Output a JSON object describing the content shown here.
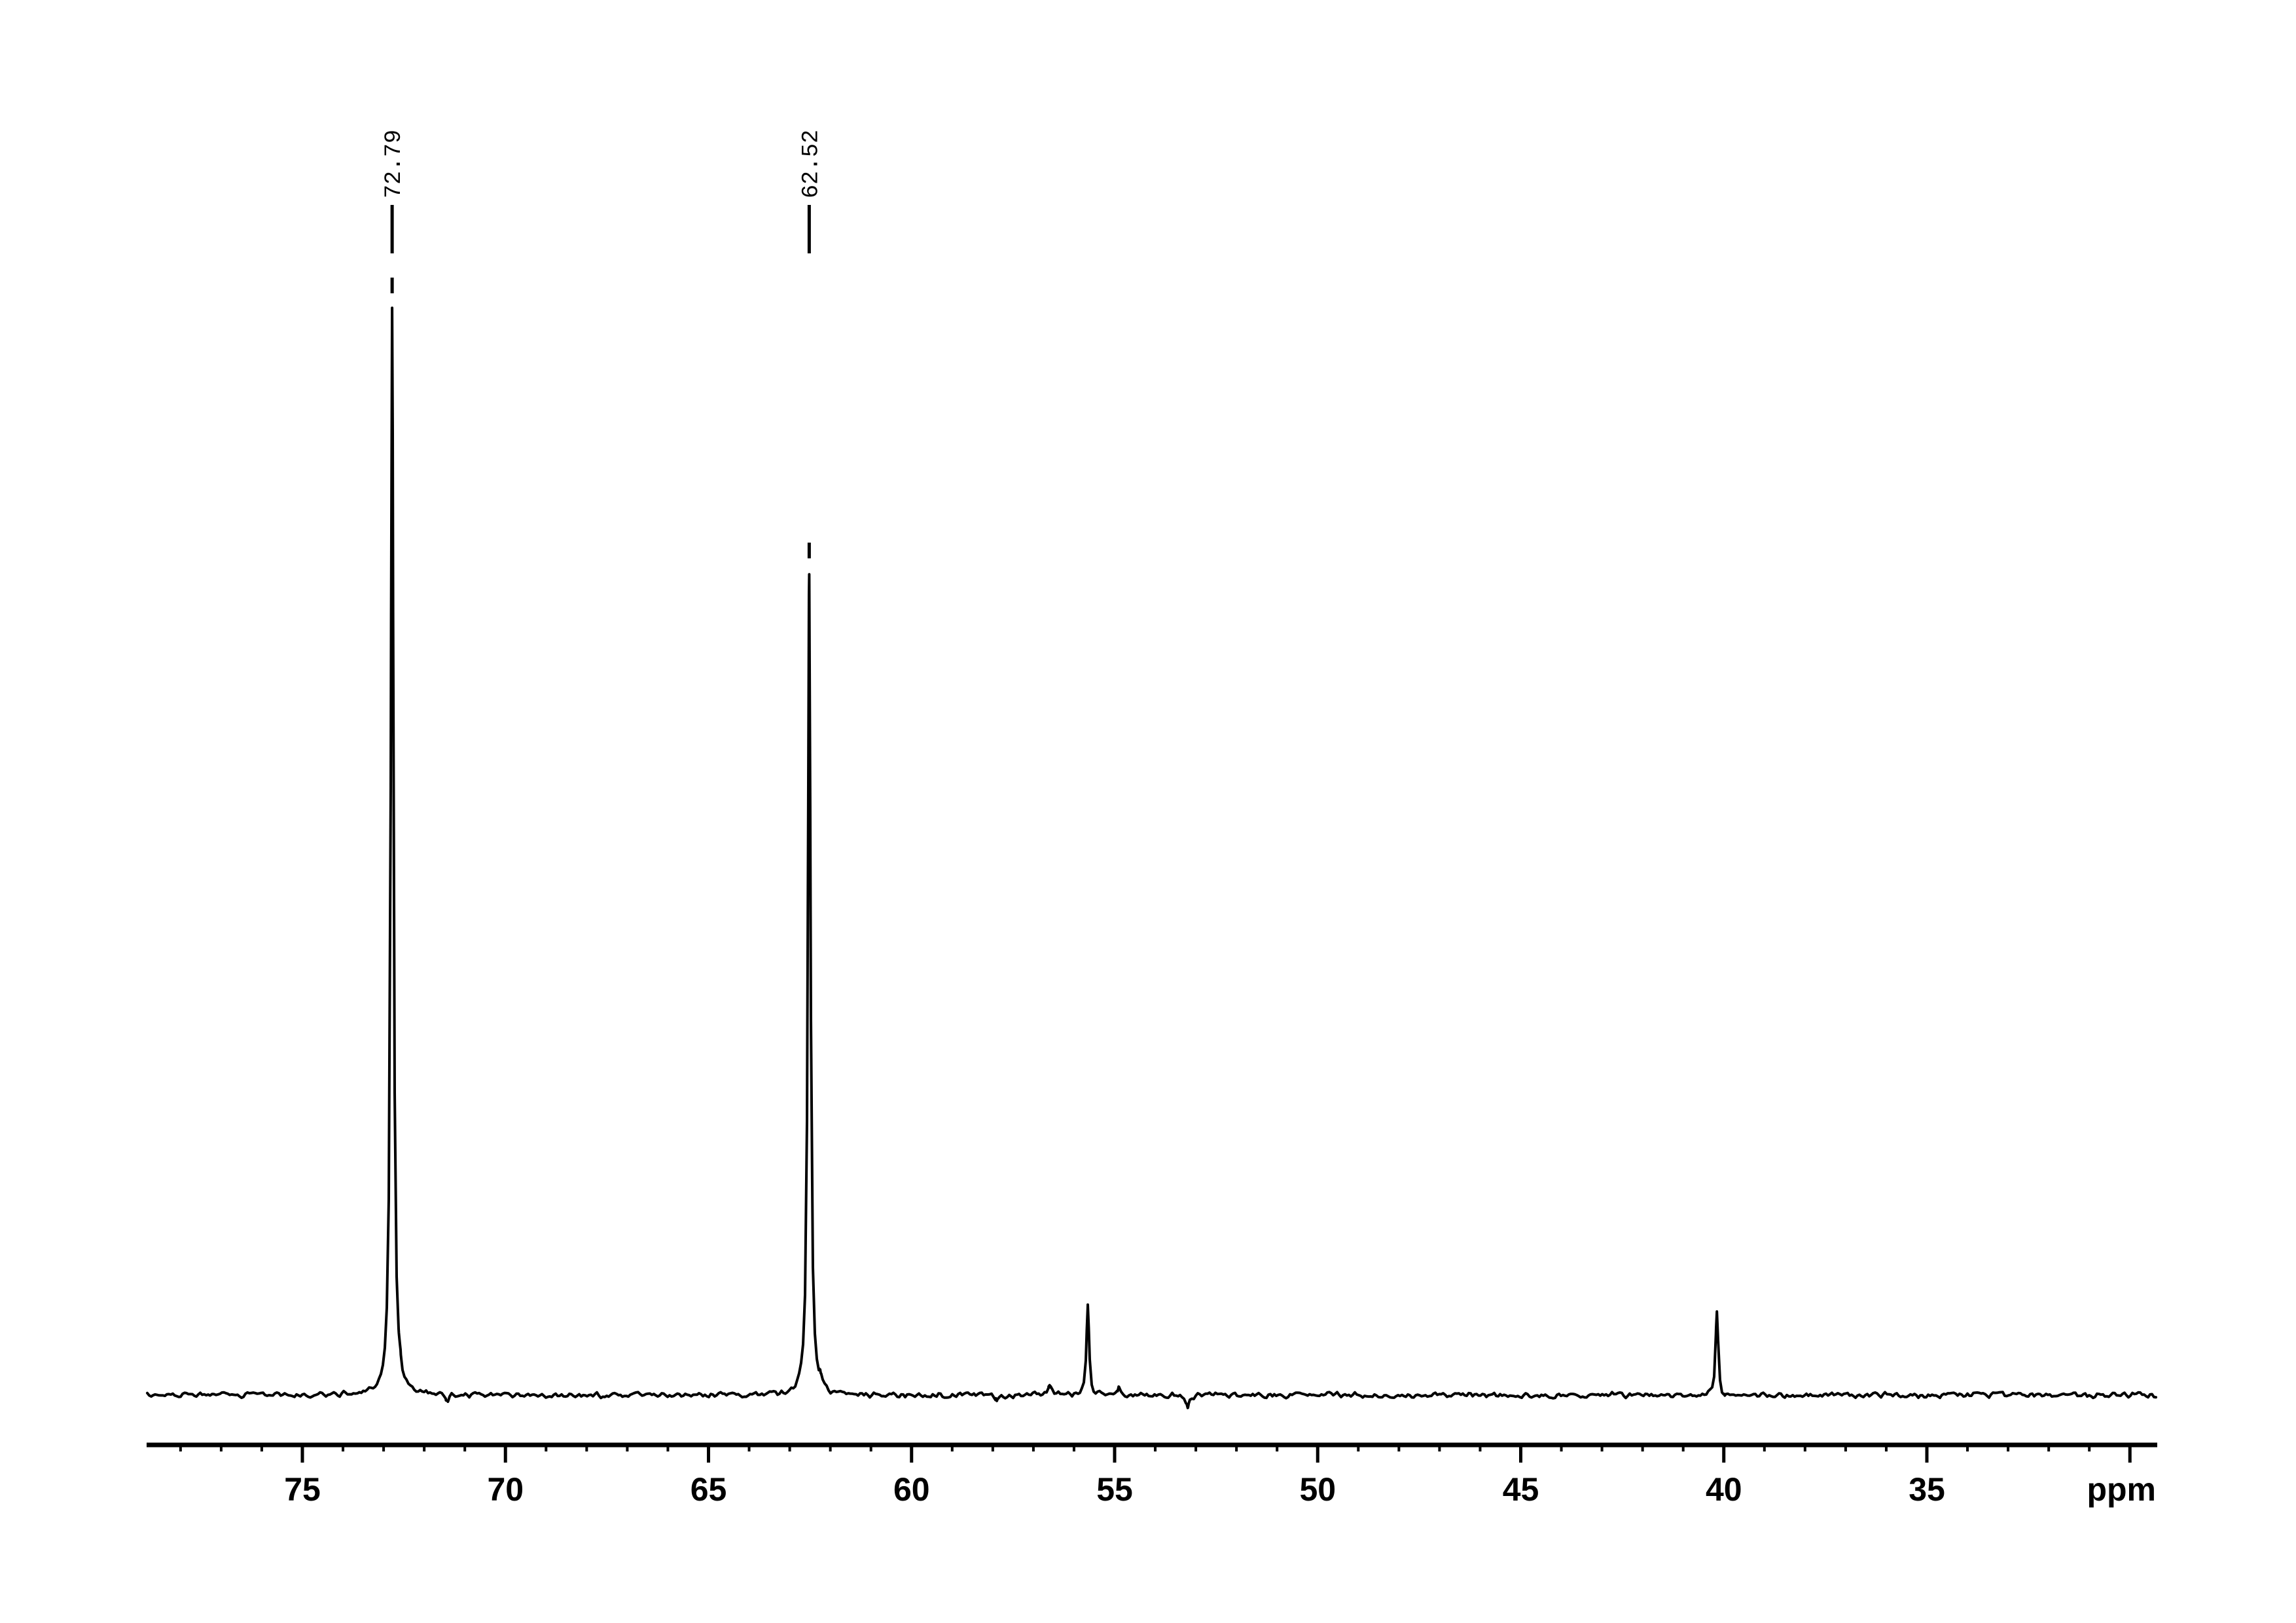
{
  "chart_data": {
    "type": "line",
    "subtype": "nmr-13c-spectrum",
    "title": "",
    "xlabel": "ppm",
    "ylabel": "",
    "x_axis": {
      "unit": "ppm",
      "direction": "decreasing-right",
      "range_ppm": [
        78.84,
        29.33
      ],
      "major_tick_values": [
        75,
        70,
        65,
        60,
        55,
        50,
        45,
        40,
        35,
        30
      ],
      "major_tick_labels": [
        "75",
        "70",
        "65",
        "60",
        "55",
        "50",
        "45",
        "40",
        "35",
        ""
      ],
      "minor_tick_step_ppm": 1,
      "minor_tick_range": [
        78,
        31
      ]
    },
    "grid": "off",
    "legend": "none",
    "peaks": [
      {
        "ppm": 72.79,
        "label": "72.79",
        "rel_intensity": 1.0,
        "labeled": true
      },
      {
        "ppm": 62.52,
        "label": "62.52",
        "rel_intensity": 0.756,
        "labeled": true
      },
      {
        "ppm": 55.66,
        "label": "",
        "rel_intensity": 0.083,
        "labeled": false
      },
      {
        "ppm": 40.17,
        "label": "",
        "rel_intensity": 0.079,
        "labeled": false
      }
    ],
    "minor_features": [
      {
        "ppm": 72.6,
        "rel_intensity": 0.0084
      },
      {
        "ppm": 71.44,
        "rel_intensity": -0.006
      },
      {
        "ppm": 62.25,
        "rel_intensity": 0.007
      },
      {
        "ppm": 57.9,
        "rel_intensity": -0.005
      },
      {
        "ppm": 56.6,
        "rel_intensity": 0.011
      },
      {
        "ppm": 54.9,
        "rel_intensity": 0.007
      },
      {
        "ppm": 53.2,
        "rel_intensity": -0.0115
      },
      {
        "ppm": 40.0,
        "rel_intensity": -0.0054
      }
    ],
    "colors": {
      "foreground": "#000000",
      "background": "#ffffff"
    }
  }
}
